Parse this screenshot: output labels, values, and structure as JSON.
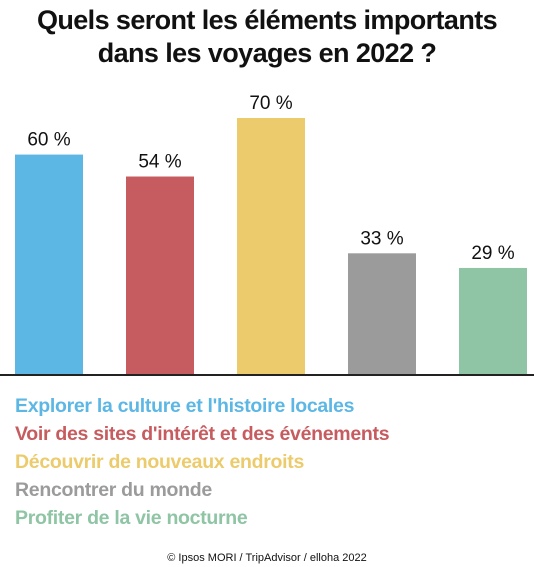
{
  "title": {
    "line1": "Quels seront les éléments importants",
    "line2": "dans les voyages en 2022 ?"
  },
  "chart_data": {
    "type": "bar",
    "categories": [
      "Explorer la culture et l'histoire locales",
      "Voir des sites d'intérêt et des événements",
      "Découvrir de nouveaux endroits",
      "Rencontrer du monde",
      "Profiter de la vie nocturne"
    ],
    "values": [
      60,
      54,
      70,
      33,
      29
    ],
    "value_labels": [
      "60 %",
      "54 %",
      "70 %",
      "33 %",
      "29 %"
    ],
    "colors": [
      "#5db7e5",
      "#c65c5f",
      "#eccb6c",
      "#9b9b9b",
      "#8fc4a4"
    ],
    "ylim": [
      0,
      100
    ],
    "grid": false,
    "legend_position": "bottom"
  },
  "legend": [
    {
      "label": "Explorer la culture et l'histoire locales",
      "color": "#5db7e5"
    },
    {
      "label": "Voir des sites d'intérêt et des événements",
      "color": "#c65c5f"
    },
    {
      "label": "Découvrir de nouveaux endroits",
      "color": "#eccb6c"
    },
    {
      "label": "Rencontrer du monde",
      "color": "#9b9b9b"
    },
    {
      "label": "Profiter de la vie nocturne",
      "color": "#8fc4a4"
    }
  ],
  "source": "© Ipsos MORI / TripAdvisor / elloha 2022"
}
